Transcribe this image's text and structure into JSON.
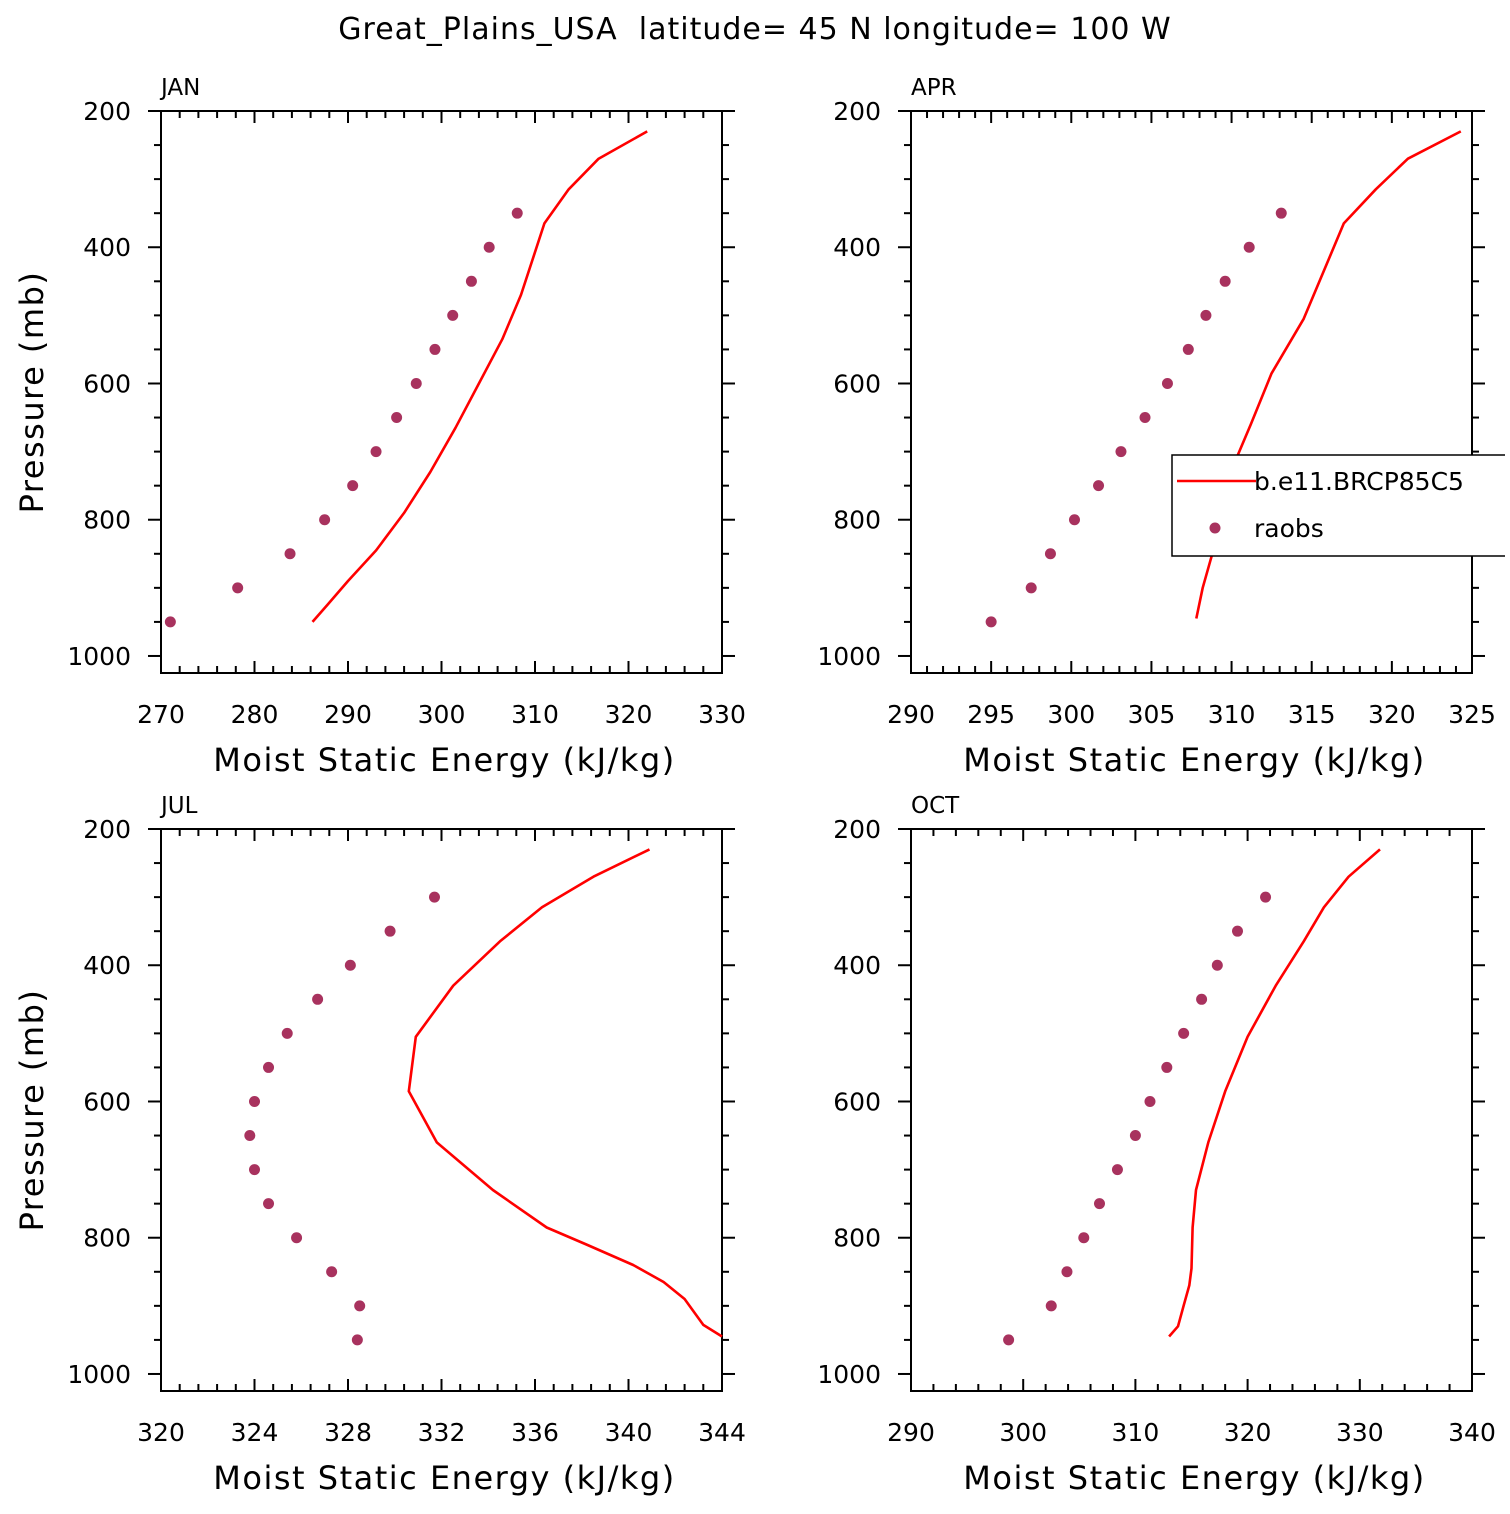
{
  "title": "Great_Plains_USA  latitude= 45 N longitude= 100 W",
  "colors": {
    "model": "#ff0000",
    "obs": "#a8325e",
    "axis": "#000000"
  },
  "legend": {
    "entries": [
      {
        "name": "b.e11.BRCP85C5",
        "style": "line"
      },
      {
        "name": "raobs",
        "style": "marker"
      }
    ]
  },
  "chart_data": [
    {
      "type": "line",
      "panel_label": "JAN",
      "xlabel": "Moist Static Energy (kJ/kg)",
      "ylabel": "Pressure (mb)",
      "xlim": [
        270,
        330
      ],
      "ylim": [
        1025,
        200
      ],
      "xticks": [
        "270",
        "280",
        "290",
        "300",
        "310",
        "320",
        "330"
      ],
      "yticks": [
        "200",
        "400",
        "600",
        "800",
        "1000"
      ],
      "legend": false,
      "series": [
        {
          "name": "b.e11.BRCP85C5",
          "style": "line",
          "x": [
            286.2,
            287.8,
            290.0,
            293.0,
            296.0,
            298.8,
            301.5,
            304.0,
            306.5,
            308.5,
            311.0,
            313.6,
            316.8,
            322.0
          ],
          "y": [
            950,
            925,
            890,
            845,
            790,
            730,
            665,
            600,
            535,
            470,
            365,
            315,
            270,
            230
          ]
        },
        {
          "name": "raobs",
          "style": "marker",
          "x": [
            271.0,
            278.2,
            283.8,
            287.5,
            290.5,
            293.0,
            295.2,
            297.3,
            299.3,
            301.2,
            303.2,
            305.1,
            308.1
          ],
          "y": [
            950,
            900,
            850,
            800,
            750,
            700,
            650,
            600,
            550,
            500,
            450,
            400,
            350
          ]
        }
      ]
    },
    {
      "type": "line",
      "panel_label": "APR",
      "xlabel": "Moist Static Energy (kJ/kg)",
      "ylabel": "",
      "xlim": [
        290,
        325
      ],
      "ylim": [
        1025,
        200
      ],
      "xticks": [
        "290",
        "295",
        "300",
        "305",
        "310",
        "315",
        "320",
        "325"
      ],
      "yticks": [
        "200",
        "400",
        "600",
        "800",
        "1000"
      ],
      "legend": true,
      "series": [
        {
          "name": "b.e11.BRCP85C5",
          "style": "line",
          "x": [
            307.8,
            308.2,
            308.8,
            309.3,
            309.7,
            310.3,
            311.2,
            312.5,
            314.5,
            317.0,
            319.0,
            321.0,
            324.3
          ],
          "y": [
            945,
            900,
            850,
            800,
            750,
            710,
            660,
            585,
            505,
            365,
            315,
            270,
            230
          ]
        },
        {
          "name": "raobs",
          "style": "marker",
          "x": [
            295.0,
            297.5,
            298.7,
            300.2,
            301.7,
            303.1,
            304.6,
            306.0,
            307.3,
            308.4,
            309.6,
            311.1,
            313.1
          ],
          "y": [
            950,
            900,
            850,
            800,
            750,
            700,
            650,
            600,
            550,
            500,
            450,
            400,
            350
          ]
        }
      ]
    },
    {
      "type": "line",
      "panel_label": "JUL",
      "xlabel": "Moist Static Energy (kJ/kg)",
      "ylabel": "Pressure (mb)",
      "xlim": [
        320,
        344
      ],
      "ylim": [
        1025,
        200
      ],
      "xticks": [
        "320",
        "324",
        "328",
        "332",
        "336",
        "340",
        "344"
      ],
      "yticks": [
        "200",
        "400",
        "600",
        "800",
        "1000"
      ],
      "legend": false,
      "series": [
        {
          "name": "b.e11.BRCP85C5",
          "style": "line",
          "x": [
            344.0,
            343.2,
            342.4,
            341.5,
            340.2,
            338.2,
            336.5,
            334.2,
            331.8,
            330.6,
            330.9,
            332.5,
            334.5,
            336.3,
            338.5,
            340.9
          ],
          "y": [
            945,
            928,
            890,
            865,
            840,
            810,
            785,
            730,
            660,
            585,
            505,
            430,
            365,
            315,
            270,
            230
          ]
        },
        {
          "name": "raobs",
          "style": "marker",
          "x": [
            328.4,
            328.5,
            327.3,
            325.8,
            324.6,
            324.0,
            323.8,
            324.0,
            324.6,
            325.4,
            326.7,
            328.1,
            329.8,
            331.7
          ],
          "y": [
            950,
            900,
            850,
            800,
            750,
            700,
            650,
            600,
            550,
            500,
            450,
            400,
            350,
            300
          ]
        }
      ]
    },
    {
      "type": "line",
      "panel_label": "OCT",
      "xlabel": "Moist Static Energy (kJ/kg)",
      "ylabel": "",
      "xlim": [
        290,
        340
      ],
      "ylim": [
        1025,
        200
      ],
      "xticks": [
        "290",
        "300",
        "310",
        "320",
        "330",
        "340"
      ],
      "yticks": [
        "200",
        "400",
        "600",
        "800",
        "1000"
      ],
      "legend": false,
      "series": [
        {
          "name": "b.e11.BRCP85C5",
          "style": "line",
          "x": [
            313.0,
            313.8,
            314.3,
            314.8,
            315.0,
            315.1,
            315.4,
            316.5,
            318.0,
            320.0,
            322.5,
            325.0,
            326.8,
            329.0,
            331.8
          ],
          "y": [
            945,
            930,
            900,
            870,
            845,
            785,
            730,
            660,
            585,
            505,
            430,
            365,
            315,
            270,
            230
          ]
        },
        {
          "name": "raobs",
          "style": "marker",
          "x": [
            298.7,
            302.5,
            303.9,
            305.4,
            306.8,
            308.4,
            310.0,
            311.3,
            312.8,
            314.3,
            315.9,
            317.3,
            319.1,
            321.6
          ],
          "y": [
            950,
            900,
            850,
            800,
            750,
            700,
            650,
            600,
            550,
            500,
            450,
            400,
            350,
            300
          ]
        }
      ]
    }
  ]
}
